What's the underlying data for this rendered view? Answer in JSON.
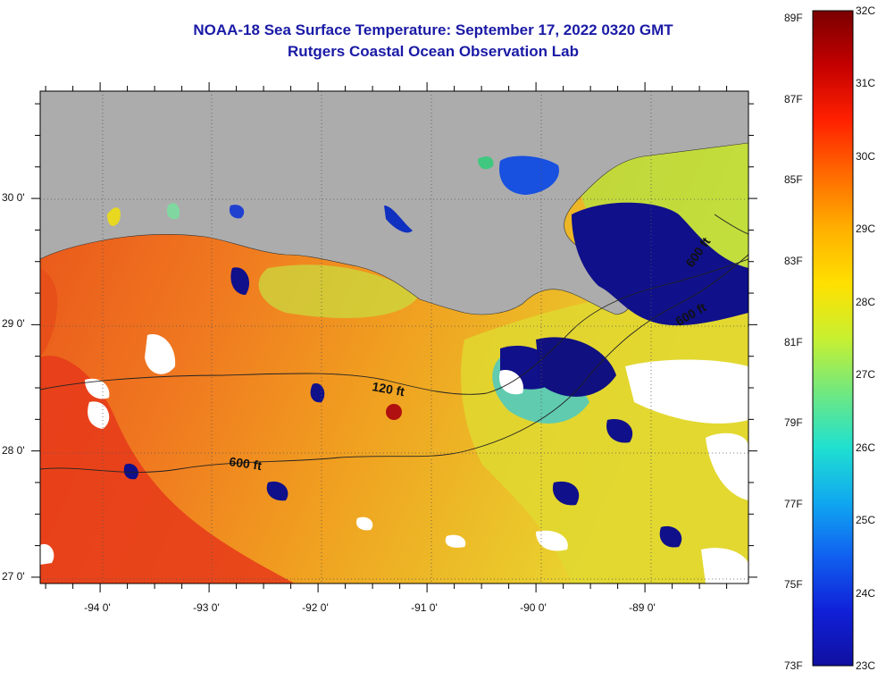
{
  "title": {
    "line1": "NOAA-18 Sea Surface Temperature:  September 17, 2022 0320 GMT",
    "line2": "Rutgers Coastal Ocean Observation Lab"
  },
  "map": {
    "lon_range": [
      -94.55,
      -88.05
    ],
    "lat_range": [
      26.95,
      30.85
    ],
    "lon_ticks": [
      {
        "value": -94,
        "label": "-94 0'"
      },
      {
        "value": -93,
        "label": "-93 0'"
      },
      {
        "value": -92,
        "label": "-92 0'"
      },
      {
        "value": -91,
        "label": "-91 0'"
      },
      {
        "value": -90,
        "label": "-90 0'"
      },
      {
        "value": -89,
        "label": "-89 0'"
      }
    ],
    "lat_ticks": [
      {
        "value": 30,
        "label": "30 0'"
      },
      {
        "value": 29,
        "label": "29 0'"
      },
      {
        "value": 28,
        "label": "28 0'"
      },
      {
        "value": 27,
        "label": "27 0'"
      }
    ],
    "contours": [
      {
        "label": "120 ft",
        "depth_ft": 120
      },
      {
        "label": "600 ft",
        "depth_ft": 600
      },
      {
        "label": "600 ft",
        "depth_ft": 600
      },
      {
        "label": "600 ft",
        "depth_ft": 600
      }
    ],
    "colors": {
      "land": "#acacac",
      "cloud": "#ffffff",
      "warm": "#f07818",
      "hot": "#e83a1a",
      "yellow": "#e8e020",
      "cold": "#10108a"
    }
  },
  "colorbar": {
    "celsius_labels": [
      "32C",
      "31C",
      "30C",
      "29C",
      "28C",
      "27C",
      "26C",
      "25C",
      "24C",
      "23C"
    ],
    "fahrenheit_labels": [
      "89F",
      "87F",
      "85F",
      "83F",
      "81F",
      "79F",
      "77F",
      "75F",
      "73F"
    ],
    "gradient": [
      "#7a0000",
      "#c40000",
      "#ff2000",
      "#ff6a00",
      "#ffb000",
      "#ffe000",
      "#c8f030",
      "#70e880",
      "#20e0d0",
      "#10a8f0",
      "#1060f0",
      "#1020d8",
      "#1010a0"
    ]
  }
}
